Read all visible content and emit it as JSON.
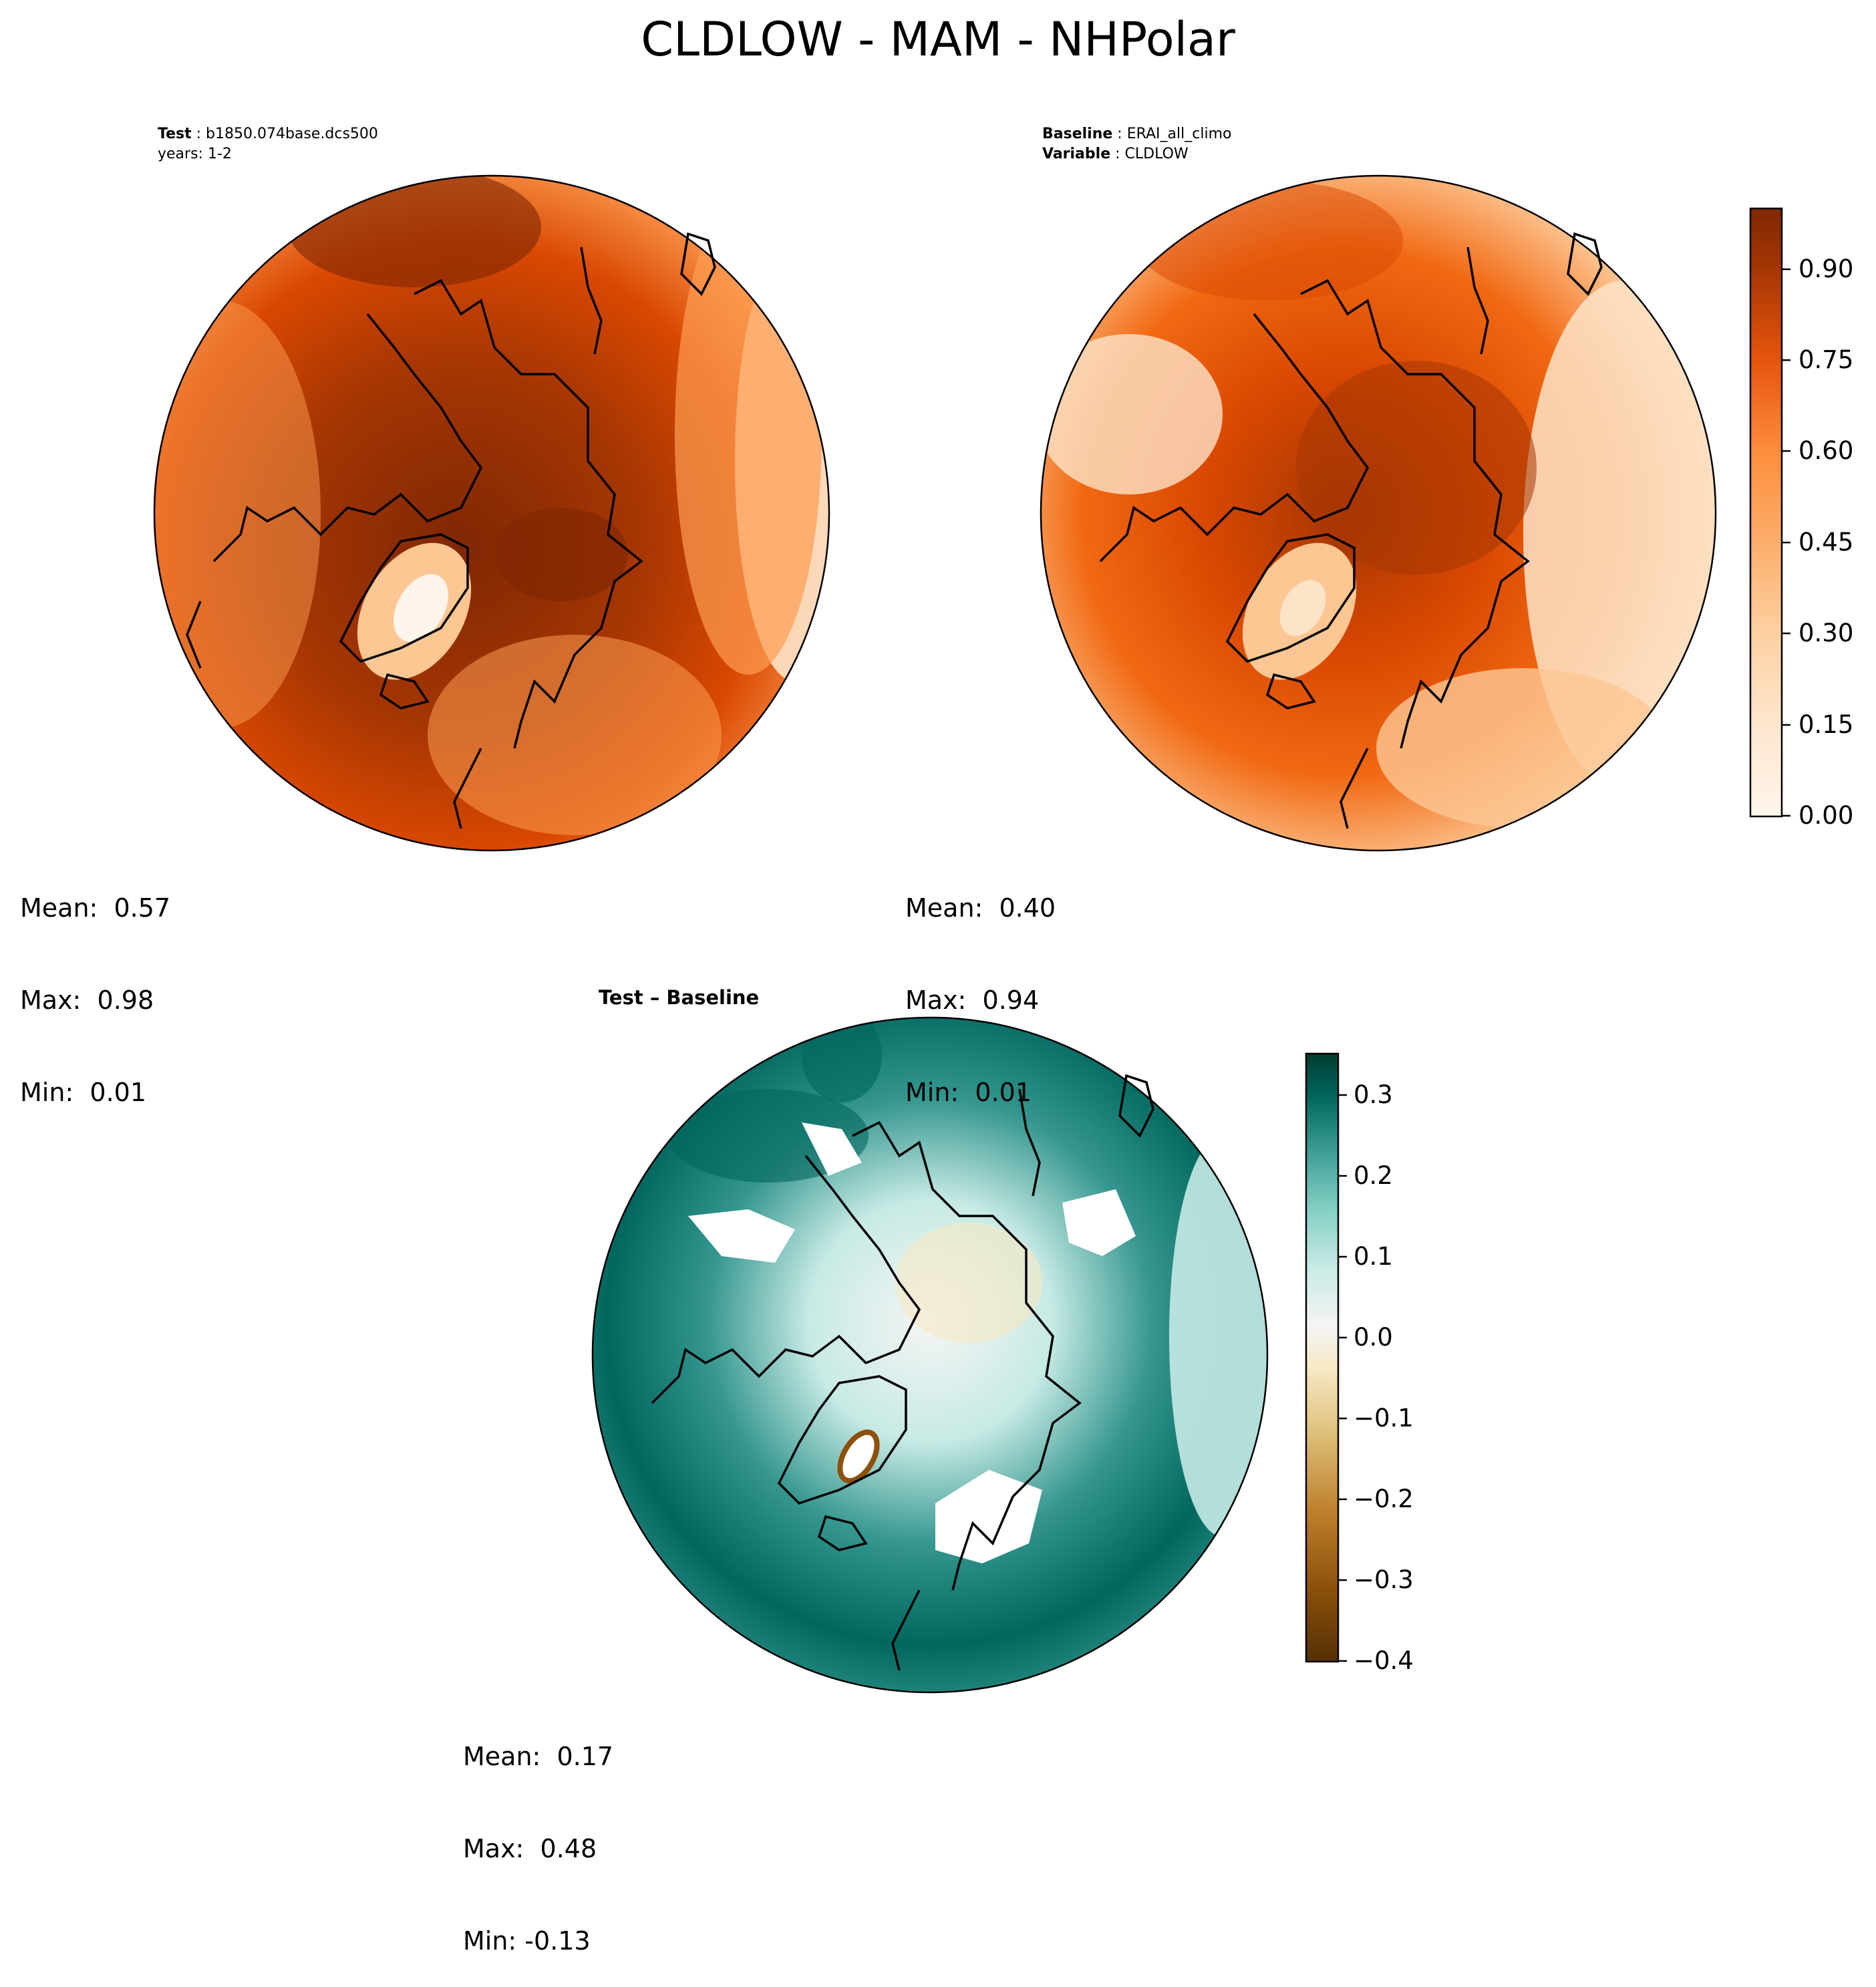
{
  "figure": {
    "title": "CLDLOW - MAM - NHPolar",
    "colors": {
      "test_ramp": [
        "#fff5eb",
        "#fde3c8",
        "#fdc794",
        "#fd9c52",
        "#f16913",
        "#d94801",
        "#a63603",
        "#7f2704"
      ],
      "diff_ramp": [
        "#543005",
        "#8c510a",
        "#bf812d",
        "#dfc27d",
        "#f6e8c3",
        "#f5f5f5",
        "#c7eae5",
        "#80cdc1",
        "#35978f",
        "#01665e",
        "#003c30"
      ],
      "coastline": "#000000"
    }
  },
  "panels": {
    "test": {
      "header_key": "Test",
      "header_value": "b1850.074base.dcs500",
      "header_line2": "years: 1-2",
      "mean_label": "Mean:  0.57",
      "max_label": "Max:  0.98",
      "min_label": "Min:  0.01"
    },
    "baseline": {
      "header_key": "Baseline",
      "header_value": "ERAI_all_climo",
      "header_key2": "Variable",
      "header_value2": "CLDLOW",
      "mean_label": "Mean:  0.40",
      "max_label": "Max:  0.94",
      "min_label": "Min:  0.01"
    },
    "diff": {
      "title": "Test – Baseline",
      "mean_label": "Mean:  0.17",
      "max_label": "Max:  0.48",
      "min_label": "Min: -0.13"
    }
  },
  "chart_data": [
    {
      "type": "heatmap",
      "name": "test",
      "projection": "north polar stereographic",
      "colorbar_range": [
        0.0,
        1.0
      ],
      "stats": {
        "mean": 0.57,
        "max": 0.98,
        "min": 0.01
      }
    },
    {
      "type": "heatmap",
      "name": "baseline",
      "projection": "north polar stereographic",
      "colorbar_range": [
        0.0,
        1.0
      ],
      "colorbar_ticks": [
        "0.00",
        "0.15",
        "0.30",
        "0.45",
        "0.60",
        "0.75",
        "0.90"
      ],
      "stats": {
        "mean": 0.4,
        "max": 0.94,
        "min": 0.01
      }
    },
    {
      "type": "heatmap",
      "name": "difference",
      "projection": "north polar stereographic",
      "colorbar_range": [
        -0.4,
        0.35
      ],
      "colorbar_ticks": [
        "−0.4",
        "−0.3",
        "−0.2",
        "−0.1",
        "0.0",
        "0.1",
        "0.2",
        "0.3"
      ],
      "stats": {
        "mean": 0.17,
        "max": 0.48,
        "min": -0.13
      }
    }
  ]
}
